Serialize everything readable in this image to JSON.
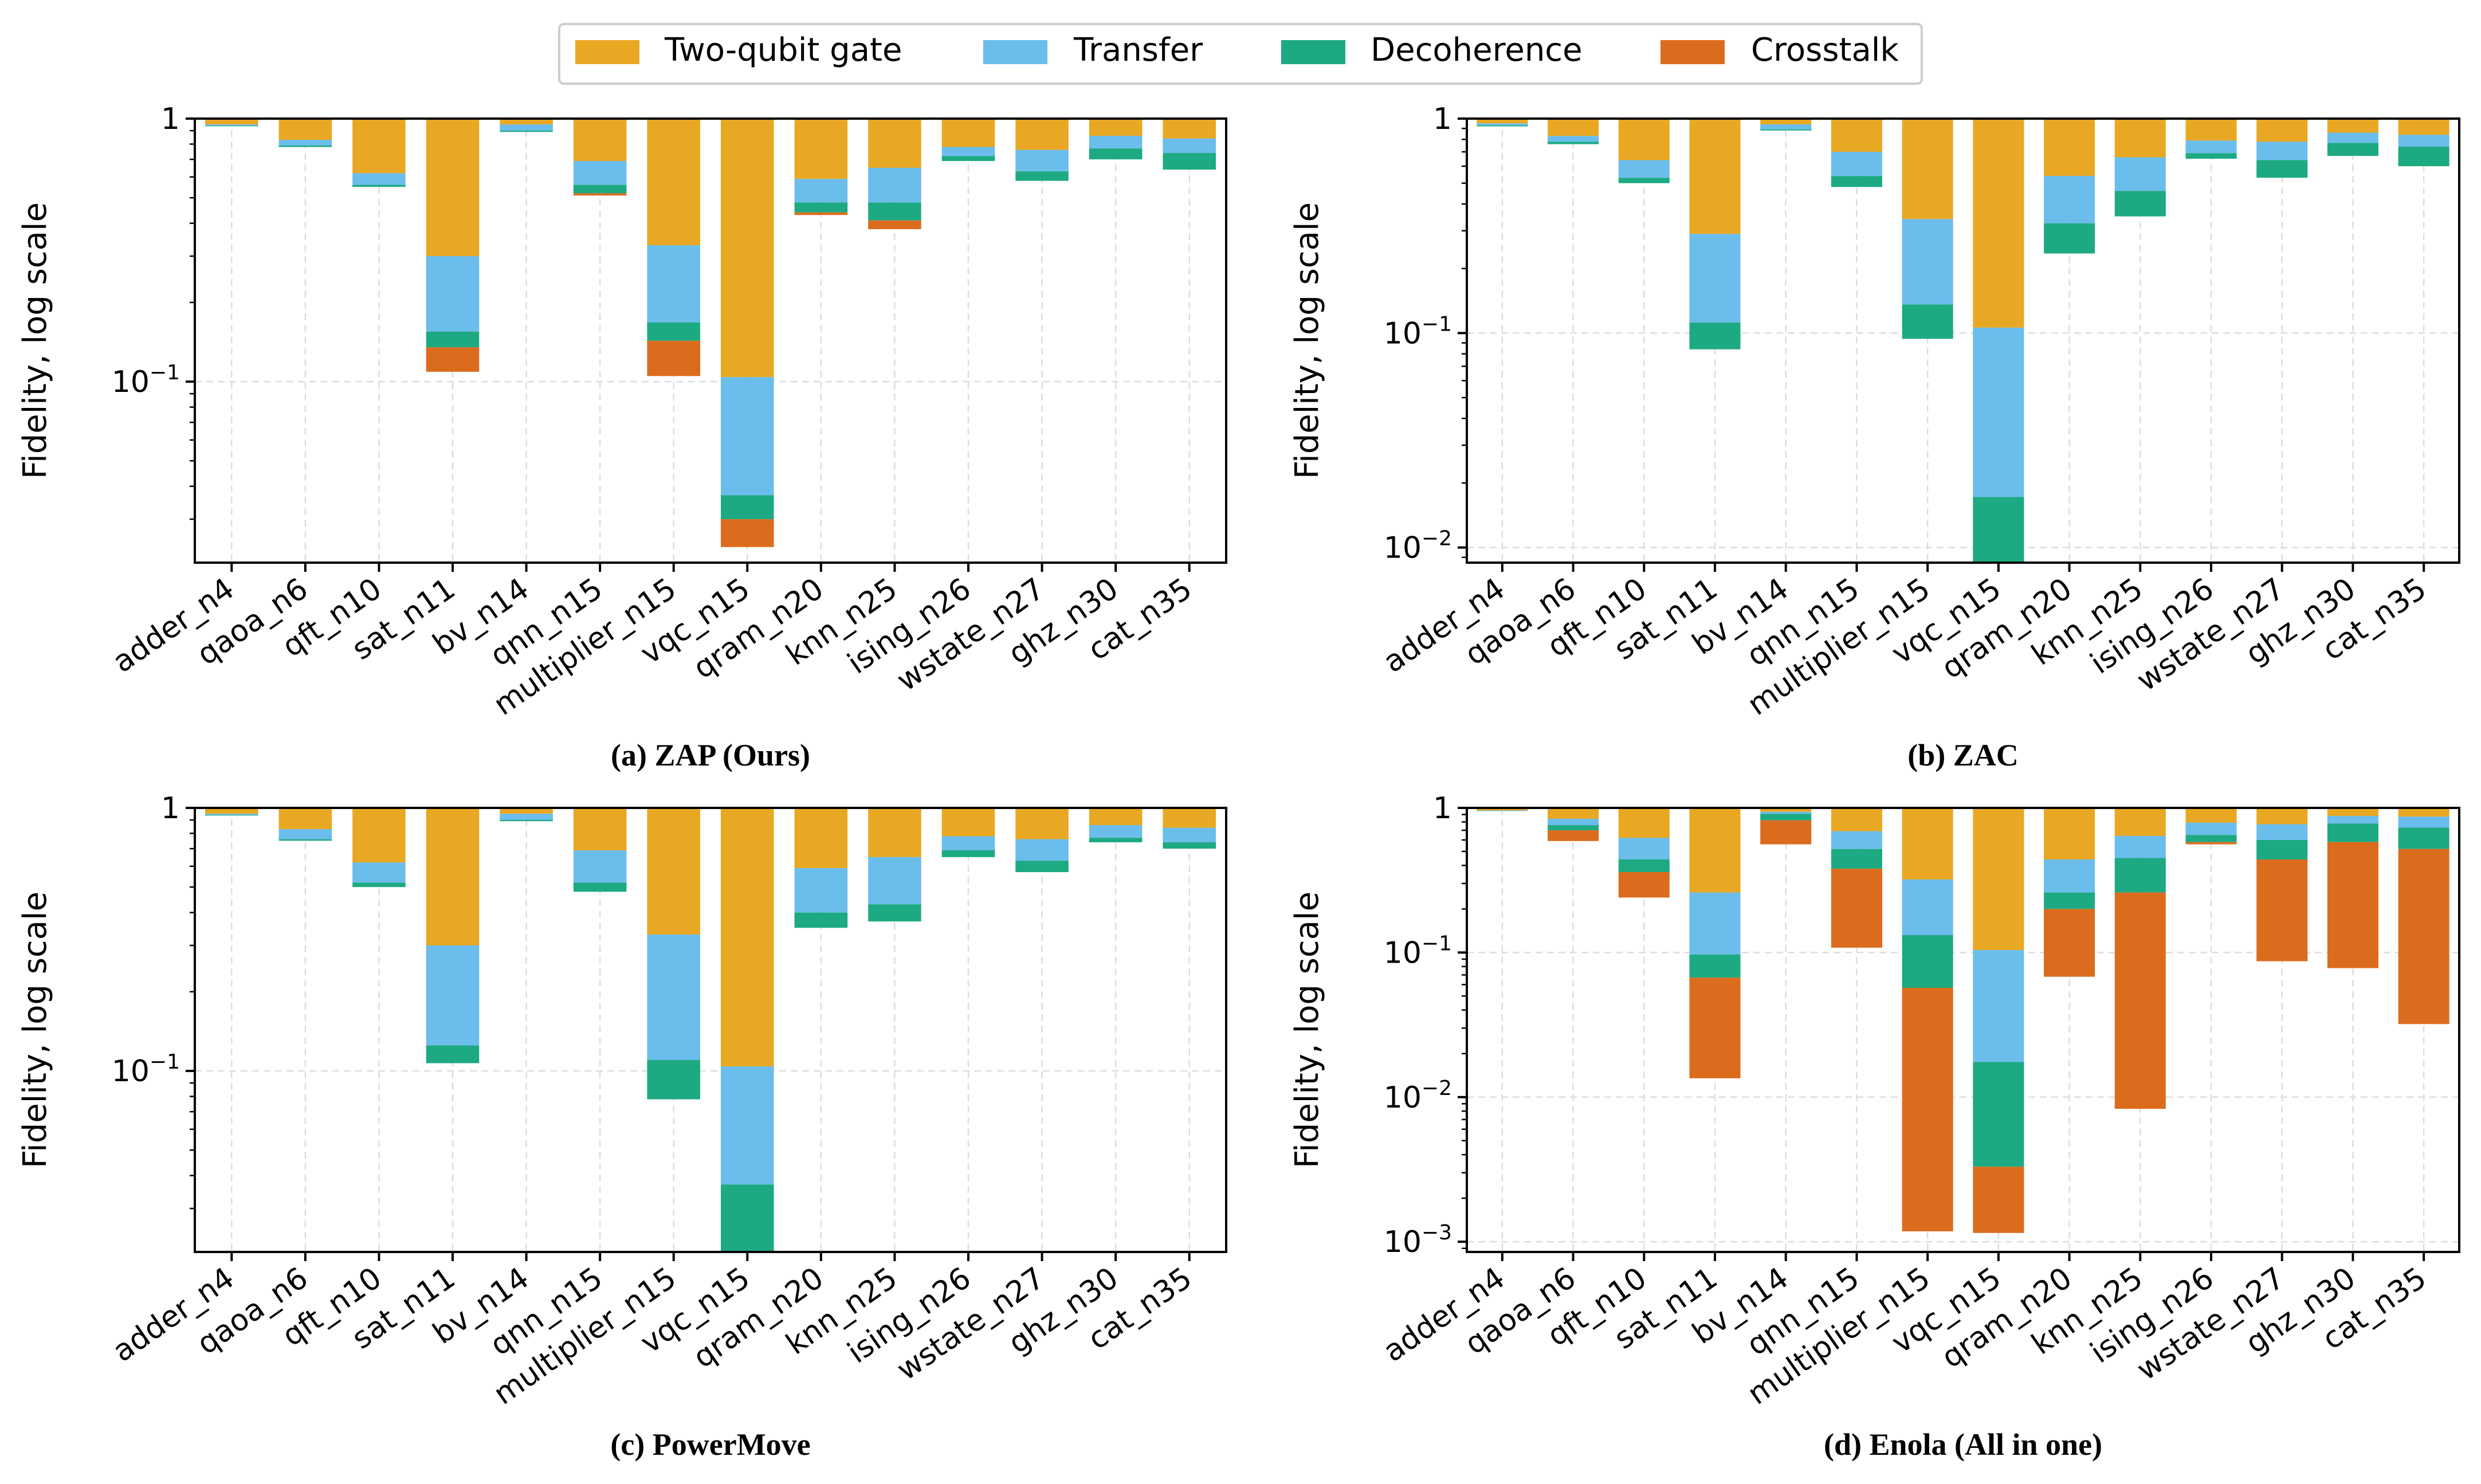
{
  "legend": {
    "placement": "top-center",
    "items": [
      {
        "label": "Two-qubit gate",
        "color": "#E9A823"
      },
      {
        "label": "Transfer",
        "color": "#6BBDEB"
      },
      {
        "label": "Decoherence",
        "color": "#1DAA82"
      },
      {
        "label": "Crosstalk",
        "color": "#DC6C1D"
      }
    ]
  },
  "chart_data": [
    {
      "type": "bar",
      "stacked": "log-product",
      "caption": "(a) ZAP (Ours)",
      "ylabel": "Fidelity, log scale",
      "yscale": "log",
      "ylim": [
        0.0205,
        1
      ],
      "yticks": [
        {
          "value": 1,
          "label": "1"
        },
        {
          "value": 0.1,
          "label": "10",
          "exp": "−1"
        }
      ],
      "grid": true,
      "categories": [
        "adder_n4",
        "qaoa_n6",
        "qft_n10",
        "sat_n11",
        "bv_n14",
        "qnn_n15",
        "multiplier_n15",
        "vqc_n15",
        "qram_n20",
        "knn_n25",
        "ising_n26",
        "wstate_n27",
        "ghz_n30",
        "cat_n35"
      ],
      "series": [
        {
          "name": "Two-qubit gate",
          "values": [
            0.95,
            0.83,
            0.62,
            0.3,
            0.95,
            0.69,
            0.33,
            0.104,
            0.59,
            0.65,
            0.78,
            0.76,
            0.86,
            0.84
          ]
        },
        {
          "name": "Transfer",
          "values": [
            0.94,
            0.79,
            0.56,
            0.155,
            0.9,
            0.56,
            0.168,
            0.037,
            0.48,
            0.48,
            0.72,
            0.63,
            0.77,
            0.74
          ]
        },
        {
          "name": "Decoherence",
          "values": [
            0.935,
            0.78,
            0.55,
            0.135,
            0.89,
            0.52,
            0.143,
            0.03,
            0.44,
            0.41,
            0.69,
            0.58,
            0.7,
            0.64
          ]
        },
        {
          "name": "Crosstalk",
          "values": [
            0.935,
            0.78,
            0.55,
            0.109,
            0.89,
            0.51,
            0.105,
            0.0235,
            0.43,
            0.38,
            0.69,
            0.58,
            0.7,
            0.64
          ]
        }
      ]
    },
    {
      "type": "bar",
      "stacked": "log-product",
      "caption": "(b) ZAC",
      "ylabel": "Fidelity, log scale",
      "yscale": "log",
      "ylim": [
        0.0085,
        1
      ],
      "yticks": [
        {
          "value": 1,
          "label": "1"
        },
        {
          "value": 0.1,
          "label": "10",
          "exp": "−1"
        },
        {
          "value": 0.01,
          "label": "10",
          "exp": "−2"
        }
      ],
      "grid": true,
      "categories": [
        "adder_n4",
        "qaoa_n6",
        "qft_n10",
        "sat_n11",
        "bv_n14",
        "qnn_n15",
        "multiplier_n15",
        "vqc_n15",
        "qram_n20",
        "knn_n25",
        "ising_n26",
        "wstate_n27",
        "ghz_n30",
        "cat_n35"
      ],
      "series": [
        {
          "name": "Two-qubit gate",
          "values": [
            0.95,
            0.83,
            0.64,
            0.29,
            0.94,
            0.7,
            0.34,
            0.106,
            0.54,
            0.66,
            0.79,
            0.78,
            0.86,
            0.84
          ]
        },
        {
          "name": "Transfer",
          "values": [
            0.93,
            0.78,
            0.53,
            0.112,
            0.89,
            0.54,
            0.136,
            0.0172,
            0.325,
            0.46,
            0.69,
            0.64,
            0.77,
            0.74
          ]
        },
        {
          "name": "Decoherence",
          "values": [
            0.92,
            0.76,
            0.5,
            0.084,
            0.88,
            0.48,
            0.094,
            0.0085,
            0.235,
            0.35,
            0.65,
            0.53,
            0.67,
            0.6
          ]
        },
        {
          "name": "Crosstalk",
          "values": [
            0.92,
            0.76,
            0.5,
            0.084,
            0.88,
            0.48,
            0.094,
            0.0085,
            0.235,
            0.35,
            0.65,
            0.53,
            0.67,
            0.6
          ]
        }
      ]
    },
    {
      "type": "bar",
      "stacked": "log-product",
      "caption": "(c) PowerMove",
      "ylabel": "Fidelity, log scale",
      "yscale": "log",
      "ylim": [
        0.0205,
        1
      ],
      "yticks": [
        {
          "value": 1,
          "label": "1"
        },
        {
          "value": 0.1,
          "label": "10",
          "exp": "−1"
        }
      ],
      "grid": true,
      "categories": [
        "adder_n4",
        "qaoa_n6",
        "qft_n10",
        "sat_n11",
        "bv_n14",
        "qnn_n15",
        "multiplier_n15",
        "vqc_n15",
        "qram_n20",
        "knn_n25",
        "ising_n26",
        "wstate_n27",
        "ghz_n30",
        "cat_n35"
      ],
      "series": [
        {
          "name": "Two-qubit gate",
          "values": [
            0.95,
            0.83,
            0.62,
            0.3,
            0.95,
            0.69,
            0.33,
            0.104,
            0.59,
            0.65,
            0.78,
            0.76,
            0.86,
            0.84
          ]
        },
        {
          "name": "Transfer",
          "values": [
            0.94,
            0.76,
            0.52,
            0.125,
            0.9,
            0.52,
            0.11,
            0.037,
            0.4,
            0.43,
            0.69,
            0.63,
            0.77,
            0.74
          ]
        },
        {
          "name": "Decoherence",
          "values": [
            0.935,
            0.75,
            0.5,
            0.107,
            0.89,
            0.48,
            0.078,
            0.0205,
            0.35,
            0.37,
            0.65,
            0.57,
            0.74,
            0.7
          ]
        },
        {
          "name": "Crosstalk",
          "values": [
            0.935,
            0.75,
            0.5,
            0.107,
            0.89,
            0.48,
            0.078,
            0.0205,
            0.35,
            0.37,
            0.65,
            0.57,
            0.74,
            0.7
          ]
        }
      ]
    },
    {
      "type": "bar",
      "stacked": "log-product",
      "caption": "(d) Enola (All in one)",
      "ylabel": "Fidelity, log scale",
      "yscale": "log",
      "ylim": [
        0.00085,
        1
      ],
      "yticks": [
        {
          "value": 1,
          "label": "1"
        },
        {
          "value": 0.1,
          "label": "10",
          "exp": "−1"
        },
        {
          "value": 0.01,
          "label": "10",
          "exp": "−2"
        },
        {
          "value": 0.001,
          "label": "10",
          "exp": "−3"
        }
      ],
      "grid": true,
      "categories": [
        "adder_n4",
        "qaoa_n6",
        "qft_n10",
        "sat_n11",
        "bv_n14",
        "qnn_n15",
        "multiplier_n15",
        "vqc_n15",
        "qram_n20",
        "knn_n25",
        "ising_n26",
        "wstate_n27",
        "ghz_n30",
        "cat_n35"
      ],
      "series": [
        {
          "name": "Two-qubit gate",
          "values": [
            0.96,
            0.84,
            0.62,
            0.26,
            0.94,
            0.69,
            0.32,
            0.104,
            0.44,
            0.64,
            0.79,
            0.77,
            0.88,
            0.87
          ]
        },
        {
          "name": "Transfer",
          "values": [
            0.95,
            0.76,
            0.44,
            0.097,
            0.91,
            0.52,
            0.132,
            0.0175,
            0.26,
            0.45,
            0.65,
            0.6,
            0.78,
            0.73
          ]
        },
        {
          "name": "Decoherence",
          "values": [
            0.95,
            0.7,
            0.36,
            0.067,
            0.82,
            0.38,
            0.057,
            0.0033,
            0.2,
            0.26,
            0.58,
            0.44,
            0.58,
            0.52
          ]
        },
        {
          "name": "Crosstalk",
          "values": [
            0.95,
            0.59,
            0.24,
            0.0135,
            0.56,
            0.108,
            0.00118,
            0.00115,
            0.068,
            0.0083,
            0.56,
            0.087,
            0.078,
            0.032
          ]
        }
      ]
    }
  ]
}
